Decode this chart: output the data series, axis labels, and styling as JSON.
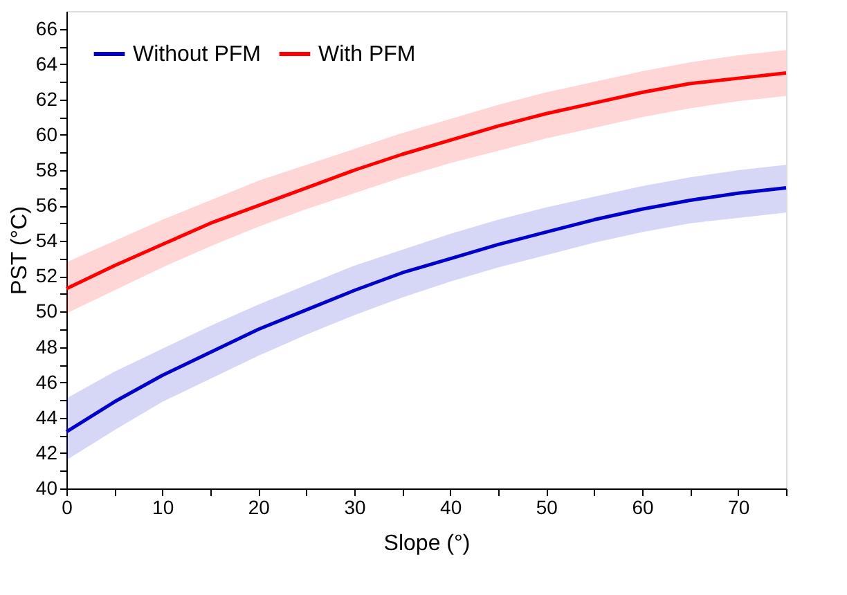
{
  "chart_data": {
    "type": "line",
    "xlabel": "Slope (°)",
    "ylabel": "PST (°C)",
    "x": [
      0,
      5,
      10,
      15,
      20,
      25,
      30,
      35,
      40,
      45,
      50,
      55,
      60,
      65,
      70,
      75
    ],
    "series": [
      {
        "name": "Without PFM",
        "color": "#0000c8",
        "values": [
          43.2,
          44.9,
          46.4,
          47.7,
          49.0,
          50.1,
          51.2,
          52.2,
          53.0,
          53.8,
          54.5,
          55.2,
          55.8,
          56.3,
          56.7,
          57.0
        ],
        "lower": [
          41.6,
          43.3,
          44.9,
          46.2,
          47.5,
          48.7,
          49.8,
          50.8,
          51.7,
          52.5,
          53.2,
          53.9,
          54.5,
          55.0,
          55.3,
          55.6
        ],
        "upper": [
          45.1,
          46.6,
          47.9,
          49.2,
          50.4,
          51.5,
          52.6,
          53.5,
          54.4,
          55.2,
          55.9,
          56.5,
          57.1,
          57.6,
          58.0,
          58.3
        ]
      },
      {
        "name": "With PFM",
        "color": "#ff0000",
        "values": [
          51.3,
          52.6,
          53.8,
          55.0,
          56.0,
          57.0,
          58.0,
          58.9,
          59.7,
          60.5,
          61.2,
          61.8,
          62.4,
          62.9,
          63.2,
          63.5
        ],
        "lower": [
          49.9,
          51.2,
          52.5,
          53.7,
          54.8,
          55.8,
          56.7,
          57.6,
          58.4,
          59.1,
          59.8,
          60.4,
          61.0,
          61.5,
          61.9,
          62.2
        ],
        "upper": [
          52.8,
          54.0,
          55.2,
          56.3,
          57.4,
          58.3,
          59.2,
          60.1,
          60.9,
          61.7,
          62.4,
          63.0,
          63.6,
          64.1,
          64.5,
          64.8
        ]
      }
    ],
    "xlim": [
      0,
      75
    ],
    "xticks": [
      0,
      {
        "value": 5,
        "label": null
      },
      10,
      {
        "value": 15,
        "label": null
      },
      20,
      {
        "value": 25,
        "label": null
      },
      30,
      {
        "value": 35,
        "label": null
      },
      40,
      {
        "value": 45,
        "label": null
      },
      50,
      {
        "value": 55,
        "label": null
      },
      60,
      {
        "value": 65,
        "label": null
      },
      70,
      {
        "value": 75,
        "label": null
      }
    ],
    "ylim": [
      40,
      67
    ],
    "yticks": [
      40,
      {
        "value": 41,
        "label": null
      },
      42,
      {
        "value": 43,
        "label": null
      },
      44,
      {
        "value": 45,
        "label": null
      },
      46,
      {
        "value": 47,
        "label": null
      },
      48,
      {
        "value": 49,
        "label": null
      },
      50,
      {
        "value": 51,
        "label": null
      },
      52,
      {
        "value": 53,
        "label": null
      },
      54,
      {
        "value": 55,
        "label": null
      },
      56,
      {
        "value": 57,
        "label": null
      },
      58,
      {
        "value": 59,
        "label": null
      },
      60,
      {
        "value": 61,
        "label": null
      },
      62,
      {
        "value": 63,
        "label": null
      },
      64,
      {
        "value": 65,
        "label": null
      },
      66
    ],
    "grid": false,
    "legend": "top left",
    "marker": "none",
    "line_style": "solid"
  }
}
